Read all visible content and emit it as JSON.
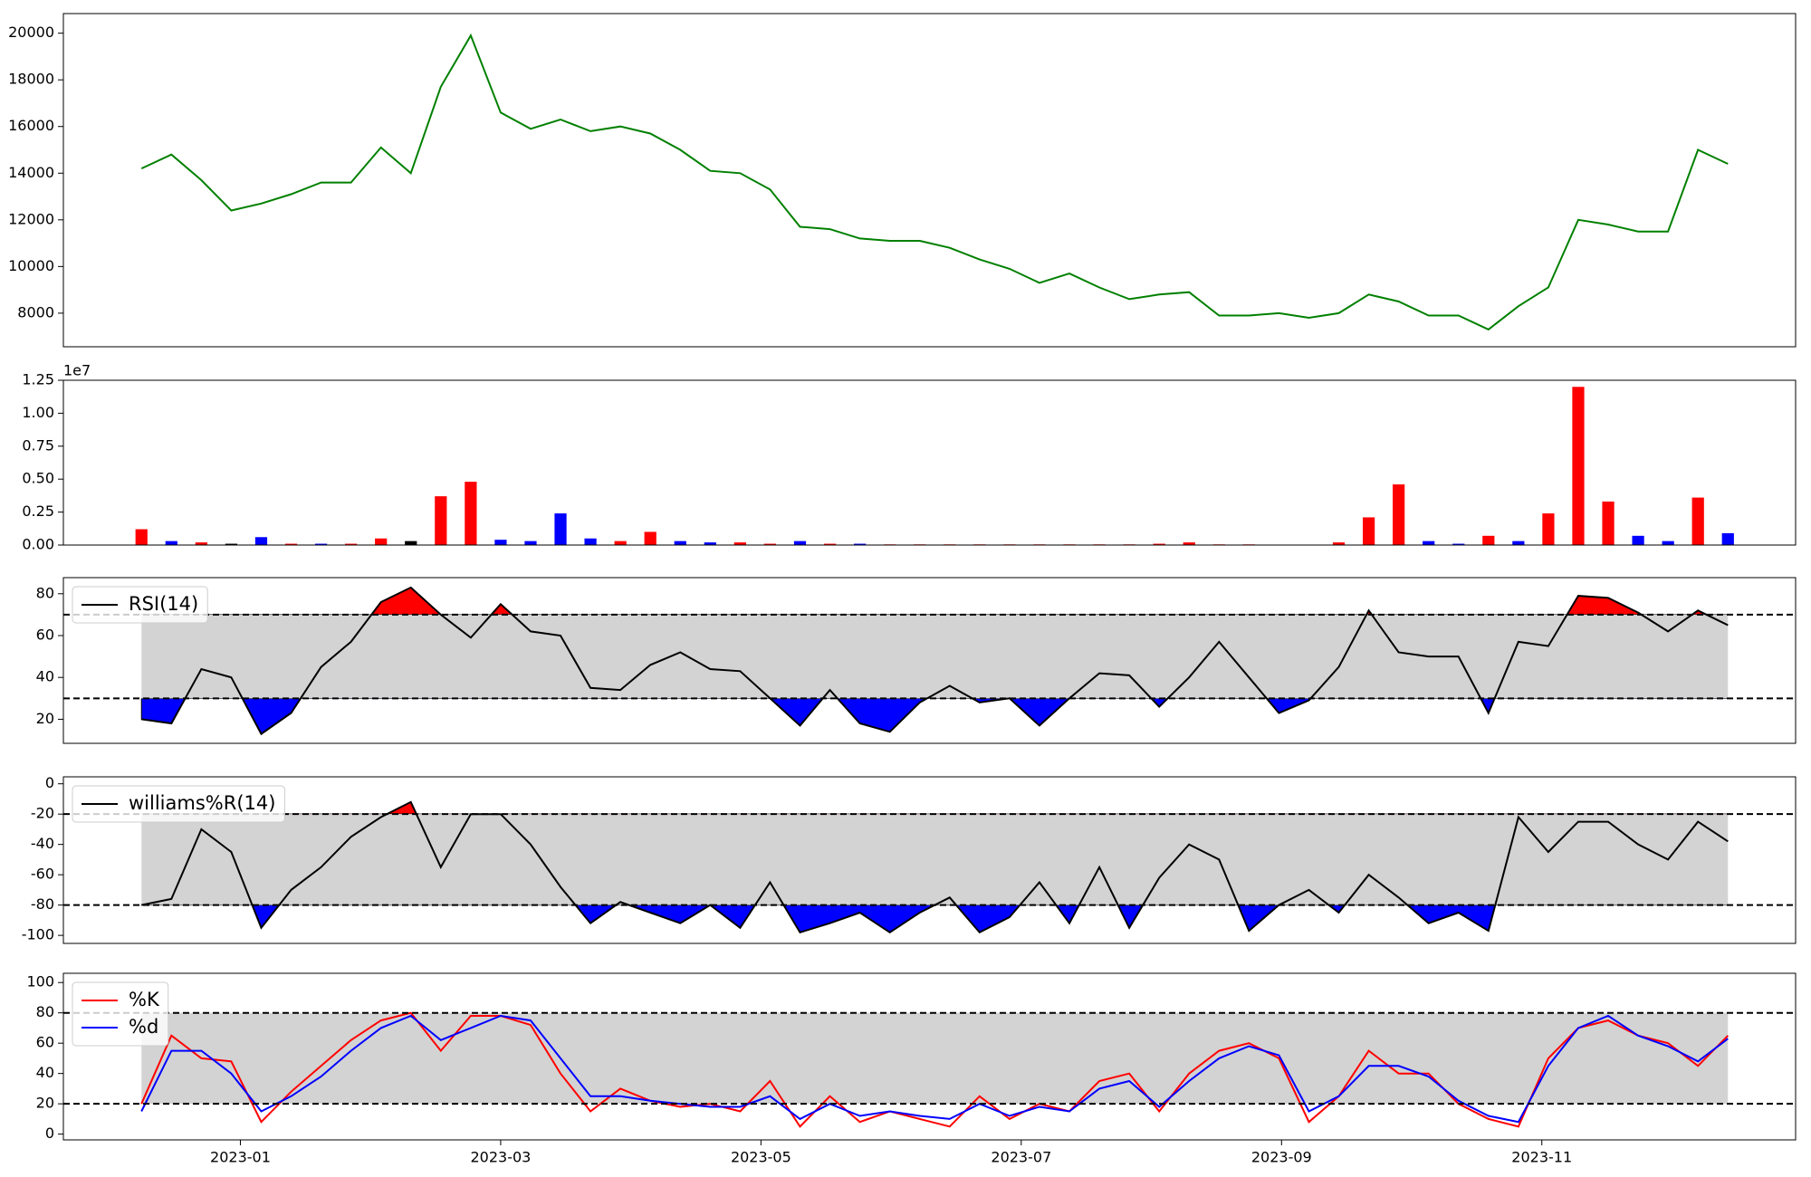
{
  "chart_data": [
    {
      "type": "line",
      "x": [
        -0.76,
        -0.53,
        -0.3,
        -0.07,
        0.16,
        0.39,
        0.62,
        0.85,
        1.08,
        1.31,
        1.54,
        1.77,
        2.0,
        2.23,
        2.46,
        2.69,
        2.92,
        3.15,
        3.38,
        3.61,
        3.84,
        4.07,
        4.3,
        4.53,
        4.76,
        4.99,
        5.22,
        5.45,
        5.68,
        5.91,
        6.14,
        6.37,
        6.6,
        6.83,
        7.06,
        7.29,
        7.52,
        7.75,
        7.98,
        8.21,
        8.44,
        8.67,
        8.9,
        9.13,
        9.36,
        9.59,
        9.82,
        10.05,
        10.28,
        10.51,
        10.74,
        10.97,
        11.2,
        11.43
      ],
      "xlim": [
        -1.36,
        11.95
      ],
      "series": [
        {
          "color": "green",
          "values": [
            14200,
            14800,
            13700,
            12400,
            12700,
            13100,
            13600,
            13600,
            15100,
            14000,
            17700,
            19900,
            16600,
            15900,
            16300,
            15800,
            16000,
            15700,
            15000,
            14100,
            14000,
            13300,
            11700,
            11600,
            11200,
            11100,
            11100,
            10800,
            10300,
            9900,
            9300,
            9700,
            9100,
            8600,
            8800,
            8900,
            7900,
            7900,
            8000,
            7800,
            8000,
            8800,
            8500,
            7900,
            7900,
            7300,
            8300,
            9100,
            12000,
            11800,
            11500,
            11500,
            15000,
            14400
          ]
        }
      ],
      "ylim": [
        6560,
        20840
      ],
      "yticks": [
        8000,
        10000,
        12000,
        14000,
        16000,
        18000,
        20000
      ]
    },
    {
      "type": "bar",
      "x": [
        -0.76,
        -0.53,
        -0.3,
        -0.07,
        0.16,
        0.39,
        0.62,
        0.85,
        1.08,
        1.31,
        1.54,
        1.77,
        2.0,
        2.23,
        2.46,
        2.69,
        2.92,
        3.15,
        3.38,
        3.61,
        3.84,
        4.07,
        4.3,
        4.53,
        4.76,
        4.99,
        5.22,
        5.45,
        5.68,
        5.91,
        6.14,
        6.37,
        6.6,
        6.83,
        7.06,
        7.29,
        7.52,
        7.75,
        7.98,
        8.21,
        8.44,
        8.67,
        8.9,
        9.13,
        9.36,
        9.59,
        9.82,
        10.05,
        10.28,
        10.51,
        10.74,
        10.97,
        11.2,
        11.43
      ],
      "xlim": [
        -1.36,
        11.95
      ],
      "values": [
        1200000,
        300000,
        200000,
        100000,
        600000,
        100000,
        100000,
        100000,
        500000,
        300000,
        3700000,
        4800000,
        400000,
        300000,
        2400000,
        500000,
        300000,
        1000000,
        300000,
        200000,
        200000,
        100000,
        300000,
        100000,
        100000,
        50000,
        50000,
        50000,
        50000,
        50000,
        50000,
        50000,
        50000,
        50000,
        100000,
        200000,
        50000,
        50000,
        0,
        0,
        200000,
        2100000,
        4600000,
        300000,
        100000,
        700000,
        300000,
        2400000,
        12000000,
        3300000,
        700000,
        300000,
        3600000,
        900000
      ],
      "colors": [
        "red",
        "blue",
        "red",
        "black",
        "blue",
        "red",
        "blue",
        "red",
        "red",
        "black",
        "red",
        "red",
        "blue",
        "blue",
        "blue",
        "blue",
        "red",
        "red",
        "blue",
        "blue",
        "red",
        "red",
        "blue",
        "red",
        "blue",
        "red",
        "red",
        "red",
        "red",
        "red",
        "red",
        "red",
        "red",
        "red",
        "red",
        "red",
        "red",
        "red",
        "red",
        "red",
        "red",
        "red",
        "red",
        "blue",
        "blue",
        "red",
        "blue",
        "red",
        "red",
        "red",
        "blue",
        "blue",
        "red",
        "blue"
      ],
      "ylim": [
        0,
        12500000
      ],
      "yticks": [
        {
          "value": 0,
          "label": "0.00"
        },
        {
          "value": 2500000,
          "label": "0.25"
        },
        {
          "value": 5000000,
          "label": "0.50"
        },
        {
          "value": 7500000,
          "label": "0.75"
        },
        {
          "value": 10000000,
          "label": "1.00"
        },
        {
          "value": 12500000,
          "label": "1.25"
        }
      ],
      "offset_label": "1e7"
    },
    {
      "type": "line",
      "x": [
        -0.76,
        -0.53,
        -0.3,
        -0.07,
        0.16,
        0.39,
        0.62,
        0.85,
        1.08,
        1.31,
        1.54,
        1.77,
        2.0,
        2.23,
        2.46,
        2.69,
        2.92,
        3.15,
        3.38,
        3.61,
        3.84,
        4.07,
        4.3,
        4.53,
        4.76,
        4.99,
        5.22,
        5.45,
        5.68,
        5.91,
        6.14,
        6.37,
        6.6,
        6.83,
        7.06,
        7.29,
        7.52,
        7.75,
        7.98,
        8.21,
        8.44,
        8.67,
        8.9,
        9.13,
        9.36,
        9.59,
        9.82,
        10.05,
        10.28,
        10.51,
        10.74,
        10.97,
        11.2,
        11.43
      ],
      "xlim": [
        -1.36,
        11.95
      ],
      "series": [
        {
          "name": "RSI(14)",
          "color": "black",
          "values": [
            20,
            18,
            44,
            40,
            13,
            23,
            45,
            57,
            76,
            83,
            70,
            59,
            75,
            62,
            60,
            35,
            34,
            46,
            52,
            44,
            43,
            30,
            17,
            34,
            18,
            14,
            28,
            36,
            28,
            30,
            17,
            30,
            42,
            41,
            26,
            40,
            57,
            40,
            23,
            29,
            45,
            72,
            52,
            50,
            50,
            23,
            57,
            55,
            79,
            78,
            71,
            62,
            72,
            65
          ]
        }
      ],
      "ylim": [
        8.5,
        87.7
      ],
      "yticks": [
        20,
        40,
        60,
        80
      ],
      "thresholds": [
        30,
        70
      ],
      "band_color": "#d3d3d3",
      "fill_above_color": "red",
      "fill_below_color": "blue",
      "legend": "upper left"
    },
    {
      "type": "line",
      "x": [
        -0.76,
        -0.53,
        -0.3,
        -0.07,
        0.16,
        0.39,
        0.62,
        0.85,
        1.08,
        1.31,
        1.54,
        1.77,
        2.0,
        2.23,
        2.46,
        2.69,
        2.92,
        3.15,
        3.38,
        3.61,
        3.84,
        4.07,
        4.3,
        4.53,
        4.76,
        4.99,
        5.22,
        5.45,
        5.68,
        5.91,
        6.14,
        6.37,
        6.6,
        6.83,
        7.06,
        7.29,
        7.52,
        7.75,
        7.98,
        8.21,
        8.44,
        8.67,
        8.9,
        9.13,
        9.36,
        9.59,
        9.82,
        10.05,
        10.28,
        10.51,
        10.74,
        10.97,
        11.2,
        11.43
      ],
      "xlim": [
        -1.36,
        11.95
      ],
      "series": [
        {
          "name": "williams%R(14)",
          "color": "black",
          "values": [
            -80,
            -76,
            -30,
            -45,
            -95,
            -70,
            -55,
            -35,
            -22,
            -12,
            -55,
            -20,
            -20,
            -40,
            -68,
            -92,
            -78,
            -85,
            -92,
            -80,
            -95,
            -65,
            -98,
            -92,
            -85,
            -98,
            -85,
            -75,
            -98,
            -88,
            -65,
            -92,
            -55,
            -95,
            -62,
            -40,
            -50,
            -97,
            -80,
            -70,
            -85,
            -60,
            -75,
            -92,
            -85,
            -97,
            -22,
            -45,
            -25,
            -25,
            -40,
            -50,
            -25,
            -38
          ]
        }
      ],
      "ylim": [
        -105.3,
        4.6
      ],
      "yticks": [
        -100,
        -80,
        -60,
        -40,
        -20,
        0
      ],
      "thresholds": [
        -80,
        -20
      ],
      "band_color": "#d3d3d3",
      "fill_above_color": "red",
      "fill_below_color": "blue",
      "legend": "upper left"
    },
    {
      "type": "line",
      "x": [
        -0.76,
        -0.53,
        -0.3,
        -0.07,
        0.16,
        0.39,
        0.62,
        0.85,
        1.08,
        1.31,
        1.54,
        1.77,
        2.0,
        2.23,
        2.46,
        2.69,
        2.92,
        3.15,
        3.38,
        3.61,
        3.84,
        4.07,
        4.3,
        4.53,
        4.76,
        4.99,
        5.22,
        5.45,
        5.68,
        5.91,
        6.14,
        6.37,
        6.6,
        6.83,
        7.06,
        7.29,
        7.52,
        7.75,
        7.98,
        8.21,
        8.44,
        8.67,
        8.9,
        9.13,
        9.36,
        9.59,
        9.82,
        10.05,
        10.28,
        10.51,
        10.74,
        10.97,
        11.2,
        11.43
      ],
      "xlim": [
        -1.36,
        11.95
      ],
      "series": [
        {
          "name": "%K",
          "color": "red",
          "values": [
            20,
            65,
            50,
            48,
            8,
            28,
            45,
            62,
            75,
            80,
            55,
            78,
            78,
            72,
            40,
            15,
            30,
            22,
            18,
            20,
            15,
            35,
            5,
            25,
            8,
            15,
            10,
            5,
            25,
            10,
            20,
            15,
            35,
            40,
            15,
            40,
            55,
            60,
            50,
            8,
            25,
            55,
            40,
            40,
            20,
            10,
            5,
            50,
            70,
            75,
            65,
            60,
            45,
            65
          ]
        },
        {
          "name": "%d",
          "color": "blue",
          "values": [
            15,
            55,
            55,
            40,
            15,
            25,
            38,
            55,
            70,
            78,
            62,
            70,
            78,
            75,
            50,
            25,
            25,
            22,
            20,
            18,
            18,
            25,
            10,
            20,
            12,
            15,
            12,
            10,
            20,
            12,
            18,
            15,
            30,
            35,
            18,
            35,
            50,
            58,
            52,
            15,
            25,
            45,
            45,
            38,
            22,
            12,
            8,
            45,
            70,
            78,
            65,
            58,
            48,
            63
          ]
        }
      ],
      "ylim": [
        -3.8,
        106.1
      ],
      "yticks": [
        0,
        20,
        40,
        60,
        80,
        100
      ],
      "thresholds": [
        20,
        80
      ],
      "band_color": "#d3d3d3",
      "legend": "upper left",
      "xticks": [
        {
          "value": 0,
          "label": "2023-01"
        },
        {
          "value": 2,
          "label": "2023-03"
        },
        {
          "value": 4,
          "label": "2023-05"
        },
        {
          "value": 6,
          "label": "2023-07"
        },
        {
          "value": 8,
          "label": "2023-09"
        },
        {
          "value": 10,
          "label": "2023-11"
        }
      ]
    }
  ]
}
